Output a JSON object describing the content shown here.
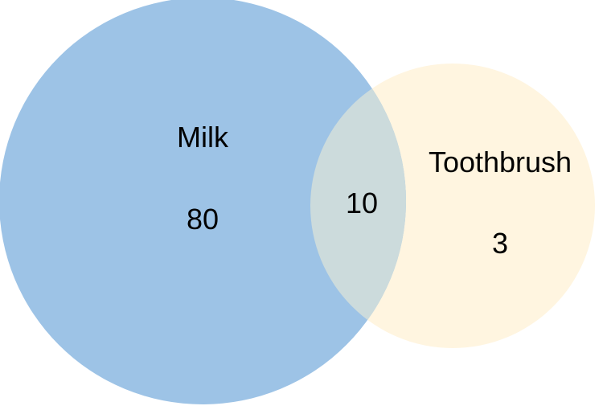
{
  "diagram": {
    "type": "venn",
    "sets": [
      {
        "label": "Milk",
        "count": "80",
        "color": "#9dc3e6"
      },
      {
        "label": "Toothbrush",
        "count": "3",
        "color": "#fff5e0"
      }
    ],
    "intersection": {
      "count": "10",
      "color": "#ccdbdc"
    }
  }
}
